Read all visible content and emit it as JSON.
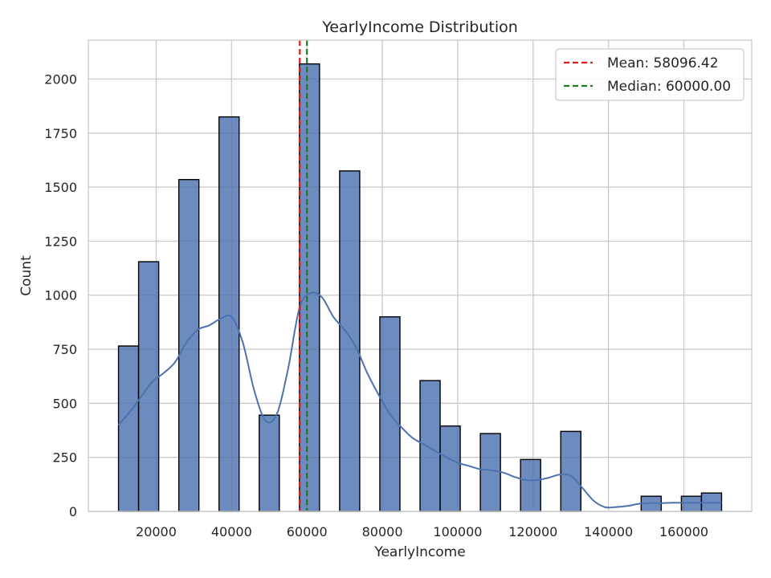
{
  "chart_data": {
    "type": "bar",
    "title": "YearlyIncome Distribution",
    "xlabel": "YearlyIncome",
    "ylabel": "Count",
    "xlim": [
      2000,
      178000
    ],
    "ylim": [
      0,
      2180
    ],
    "xticks": [
      20000,
      40000,
      60000,
      80000,
      100000,
      120000,
      140000,
      160000
    ],
    "yticks": [
      0,
      250,
      500,
      750,
      1000,
      1250,
      1500,
      1750,
      2000
    ],
    "grid": true,
    "bin_width": 5333.33,
    "bars": [
      {
        "x0": 10000,
        "count": 765
      },
      {
        "x0": 15333.33,
        "count": 1155
      },
      {
        "x0": 26000,
        "count": 1535
      },
      {
        "x0": 36666.67,
        "count": 1825
      },
      {
        "x0": 47333.33,
        "count": 445
      },
      {
        "x0": 58000,
        "count": 2070
      },
      {
        "x0": 68666.67,
        "count": 1575
      },
      {
        "x0": 79333.33,
        "count": 900
      },
      {
        "x0": 90000,
        "count": 605
      },
      {
        "x0": 95333.33,
        "count": 395
      },
      {
        "x0": 106000,
        "count": 360
      },
      {
        "x0": 116666.67,
        "count": 240
      },
      {
        "x0": 127333.33,
        "count": 370
      },
      {
        "x0": 148666.67,
        "count": 70
      },
      {
        "x0": 159333.33,
        "count": 70
      },
      {
        "x0": 164666.67,
        "count": 85
      }
    ],
    "kde": {
      "x": [
        10000,
        13000,
        16000,
        19000,
        22000,
        25000,
        28000,
        31000,
        34000,
        37000,
        40000,
        43000,
        46000,
        49000,
        52000,
        55000,
        58000,
        61000,
        64000,
        67000,
        70000,
        73000,
        76000,
        79000,
        82000,
        85000,
        88000,
        91000,
        94000,
        97000,
        100000,
        103000,
        106000,
        109000,
        112000,
        115000,
        118000,
        121000,
        124000,
        127000,
        130000,
        133000,
        136000,
        139000,
        142000,
        145000,
        148000,
        151000,
        154000,
        157000,
        160000,
        163000,
        166000,
        170000
      ],
      "y": [
        400,
        460,
        530,
        600,
        640,
        690,
        780,
        840,
        860,
        890,
        900,
        780,
        560,
        420,
        450,
        660,
        940,
        1010,
        990,
        900,
        840,
        760,
        640,
        540,
        450,
        390,
        340,
        310,
        280,
        250,
        225,
        210,
        195,
        190,
        180,
        160,
        145,
        145,
        155,
        170,
        165,
        110,
        50,
        20,
        20,
        25,
        35,
        38,
        38,
        40,
        40,
        40,
        40,
        40
      ]
    },
    "lines": [
      {
        "name": "Mean: 58096.42",
        "x": 58096.42,
        "color": "#e41a1c"
      },
      {
        "name": "Median: 60000.00",
        "x": 60000.0,
        "color": "#1a7f1a"
      }
    ],
    "colors": {
      "bar": "#4c72b0",
      "kde": "#4c72b0",
      "grid": "#cccccc"
    },
    "legend_position": "top-right"
  }
}
